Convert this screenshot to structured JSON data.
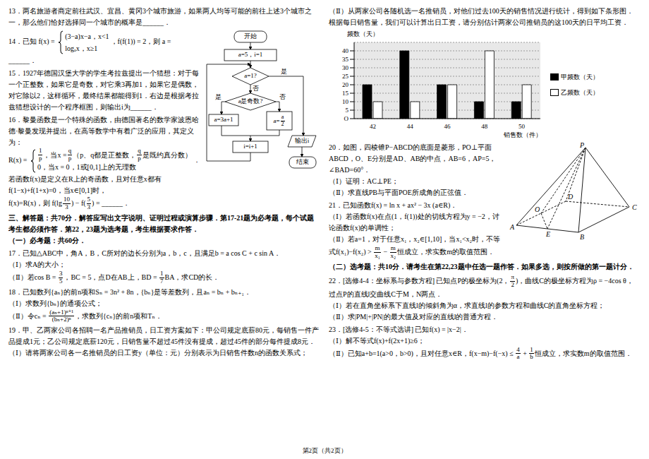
{
  "left_column": [
    {
      "kind": "question",
      "paragraphs": [
        [
          "13．两名旅游者商定前往武汉、宜昌、黄冈3个城市旅游，如果两人均等可能的前往上述3个城市之一，那么他们恰好选择同一个城市的概率是______．"
        ]
      ]
    },
    {
      "kind": "question",
      "paragraphs": [
        [
          "14．已知 f(x) = ",
          {
            "cases": [
              [
                "(3−a)x−a，x<1"
              ],
              [
                "logₐx，x≥1"
              ]
            ]
          },
          "，f(f(1)) = 2，则 a = ______．"
        ]
      ]
    },
    {
      "kind": "question",
      "paragraphs": [
        [
          "15．1927年德国汉堡大学的学生考拉兹提出一个猜想：对于每一个正整数，如果它是奇数，对它乘3再加1，如果它是偶数，对它除以2，这样循环，最终结果都能得到1．右边是根据考拉兹猜想设计的一个程序框图，则输出i为______．"
        ]
      ]
    },
    {
      "kind": "question",
      "paragraphs": [
        [
          "16．黎曼函数是一个特殊的函数，由德国著名的数学家波恩哈德·黎曼发现并提出，在高等数学中有着广泛的应用，其定义为："
        ],
        [
          "R(x) = ",
          {
            "cases": [
              [
                {
                  "frac": [
                    "1",
                    "p"
                  ]
                },
                "，当x = ",
                {
                  "frac": [
                    "q",
                    "p"
                  ]
                },
                "（p、q都是正整数，",
                {
                  "frac": [
                    "q",
                    "p"
                  ]
                },
                "是既约真分数）"
              ],
              [
                "0，当x = 0，1或[0,1]上的无理数"
              ]
            ]
          },
          "．"
        ],
        [
          "若函数f(x)是定义在R上的奇函数，且对任意x都有f(1−x)+f(1+x)=0，当x∈[0,1]时，"
        ],
        [
          "f(x)=R(x)，则 f(lg",
          {
            "frac": [
              "10",
              "3"
            ]
          },
          ") − f(",
          {
            "frac": [
              "5",
              "3"
            ]
          },
          ") = ______．"
        ]
      ]
    },
    {
      "kind": "heading",
      "paragraphs": [
        [
          "三、解答题：共70分．解答应写出文字说明、证明过程或演算步骤．第17-21题为必考题，每个试题考生都必须作答．第22，23题为选考题，考生根据要求作答．"
        ],
        [
          "（一）必考题：共60分．"
        ]
      ]
    },
    {
      "kind": "question",
      "paragraphs": [
        [
          "17．已知△ABC中，角A，B，C所对的边长分别为a，b，c，且满足b = a cos C + c sin A．"
        ],
        [
          "（Ⅰ）求A的大小；"
        ],
        [
          "（Ⅱ）若cos B = ",
          {
            "frac": [
              "3",
              "5"
            ]
          },
          "，BC = 5，点D在AB上，BD = ",
          {
            "frac": [
              "1",
              "7"
            ]
          },
          "BA，求CD的长．"
        ]
      ]
    },
    {
      "kind": "question",
      "paragraphs": [
        [
          "18．已知数列{aₙ}的前n项和Sₙ = 3n² + 8n，{bₙ}是等差数列，且aₙ = bₙ + bₙ₊₁．"
        ],
        [
          "（Ⅰ）求数列{bₙ}的通项公式；"
        ],
        [
          "（Ⅱ）令cₙ = ",
          {
            "frac": [
              "(aₙ+1)ⁿ⁺¹",
              "(bₙ+2)ⁿ"
            ]
          },
          "，求数列{cₙ}的前n项和Tₙ．"
        ]
      ]
    },
    {
      "kind": "question",
      "paragraphs": [
        [
          "19．甲、乙两家公司各招聘一名产品推销员，日工资方案如下：甲公司规定底薪80元，每销售一件产品提成1元；乙公司规定底薪120元，日销售量不超过45件没有提成，超过45件的部分每件提成8元．"
        ],
        [
          "（Ⅰ）请将两家公司各一名推销员的日工资y（单位：元）分别表示为日销售件数n的函数关系式；"
        ]
      ]
    }
  ],
  "flowchart": {
    "start": "开始",
    "init": "a=5，i=1",
    "cond1": "a=1?",
    "cond2": "a是奇数?",
    "yes": "是",
    "no": "否",
    "odd_box": "a=3a+1",
    "even_box": [
      "a=",
      {
        "frac": [
          "a",
          "2"
        ]
      }
    ],
    "output": "输出i",
    "incr": "i=i+1",
    "end": "结束"
  },
  "right_column_top": [
    {
      "kind": "question",
      "paragraphs": [
        [
          "（Ⅱ）从两家公司各随机选一名推销员，对他们过去100天的销售情况进行统计，得到如下条形图．根据每日销售量，我们可以计算出日工资，请分别估计两家公司推销员的这100天的日平均工资．"
        ]
      ]
    }
  ],
  "chart_data": {
    "type": "bar",
    "y_label": "频数（天）",
    "x_label": "销售数（件）",
    "categories": [
      "42",
      "44",
      "46",
      "48",
      "50"
    ],
    "series": [
      {
        "name": "甲频数（天）",
        "color": "#000000",
        "values": [
          20,
          40,
          20,
          10,
          10
        ]
      },
      {
        "name": "乙频数（天）",
        "color": "#ffffff",
        "values": [
          10,
          10,
          20,
          40,
          20
        ]
      }
    ],
    "ylim": [
      0,
      45
    ],
    "yticks": [
      {
        "value": 0,
        "label": "O"
      },
      5,
      10,
      15,
      20,
      25,
      30,
      35,
      40
    ],
    "grid": true,
    "legend": "right"
  },
  "pyramid_figure": {
    "vertex_labels": [
      "P",
      "A",
      "B",
      "C",
      "D",
      "O",
      "E"
    ]
  },
  "right_column_bottom": [
    {
      "kind": "question",
      "paragraphs": [
        [
          "20．如图，四棱锥P−ABCD的底面是菱形，PO⊥平面ABCD，O、E分别是AD、AB的中点，AB=6，AP=5，∠BAD=60°．"
        ],
        [
          "（Ⅰ）证明：AC⊥PE；"
        ],
        [
          "（Ⅱ）求直线PB与平面POE所成角的正弦值．"
        ]
      ]
    },
    {
      "kind": "question",
      "paragraphs": [
        [
          "21．已知函数f(x) = ln x + ax² − 3x (a∈R)．"
        ],
        [
          "（Ⅰ）若函数f(x)在点(1，f(1))处的切线方程为y = −2，讨论函数f(x)的单调性；"
        ],
        [
          "（Ⅱ）若a=1，对于任意x₁，x₂∈[1,10]，当x₁<x₂时，不等式f(x₁)−f(x₂) > ",
          {
            "frac": [
              "m",
              "x₁"
            ]
          },
          " − ",
          {
            "frac": [
              "m",
              "x₂"
            ]
          },
          "恒成立，求实数m的取值范围．"
        ]
      ]
    },
    {
      "kind": "heading",
      "paragraphs": [
        [
          "（二）选考题：共10分．请考生在第22,23题中任选一题作答．如果多选，则按所做的第一题计分．"
        ]
      ]
    },
    {
      "kind": "question",
      "paragraphs": [
        [
          "22．[选修4-4：坐标系与参数方程] 已知点P的极坐标为(2，",
          {
            "frac": [
              "π",
              "2"
            ]
          },
          ")，曲线C的极坐标方程为ρ = −4cos θ，过点P的直线l交曲线C于M，N两点．"
        ],
        [
          "（Ⅰ）若在直角坐标系下直线l的倾斜角为α，求直线l的参数方程和曲线C的直角坐标方程；"
        ],
        [
          "（Ⅱ）求|PM|+|PN|的最大值及对应的直线l的普通方程．"
        ]
      ]
    },
    {
      "kind": "question",
      "paragraphs": [
        [
          "23．[选修4-5：不等式选讲] 已知f(x) = |x−2|．"
        ],
        [
          "（Ⅰ）解不等式f(x)+f(2x+1)≥6；"
        ],
        [
          "（Ⅱ）已知a+b=1(a>0，b>0)，且对任意x∈R，f(x−m)−f(−x) ≤ ",
          {
            "frac": [
              "4",
              "a"
            ]
          },
          " + ",
          {
            "frac": [
              "1",
              "b"
            ]
          },
          "恒成立，求实数m的取值范围．"
        ]
      ]
    }
  ],
  "footer": "第2页（共2页）"
}
